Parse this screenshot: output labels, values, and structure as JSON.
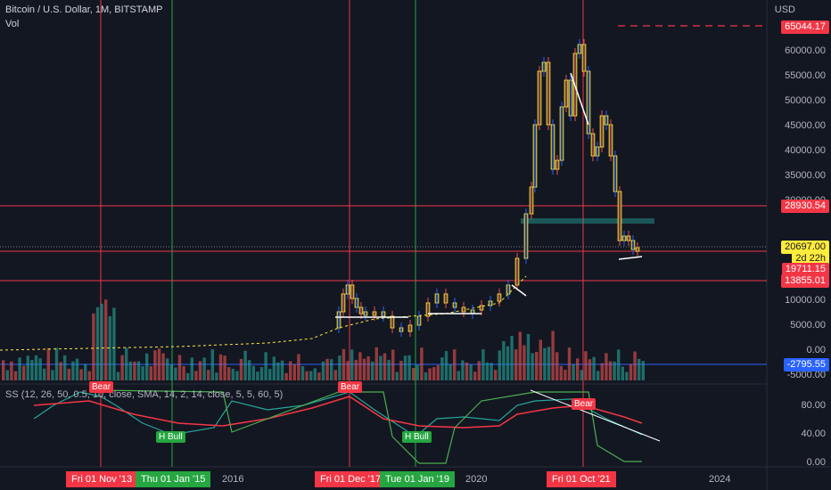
{
  "header": {
    "symbol_title": "Bitcoin / U.S. Dollar, 1M, BITSTAMP",
    "volume_label": "Vol",
    "currency": "USD",
    "indicator_title": "SS (12, 26, 50, 0.5, 10, close, SMA, 14, 2, 14, close, 5, 5, 60, 5)"
  },
  "price_axis": {
    "labels": [
      "60000.00",
      "55000.00",
      "50000.00",
      "45000.00",
      "40000.00",
      "35000.00",
      "30000.00",
      "10000.00",
      "5000.00",
      "0.00",
      "-5000.00"
    ],
    "badges": [
      {
        "text": "65044.17",
        "color": "#f23645"
      },
      {
        "text": "28930.54",
        "color": "#f23645"
      },
      {
        "text": "20697.00",
        "color": "#ffeb3b",
        "text_color": "#131722"
      },
      {
        "text": "2d 22h",
        "color": "#ffeb3b",
        "text_color": "#131722"
      },
      {
        "text": "19711.15",
        "color": "#f23645"
      },
      {
        "text": "13855.01",
        "color": "#f23645"
      },
      {
        "text": "-2795.55",
        "color": "#2962ff"
      }
    ]
  },
  "osc_axis": {
    "labels": [
      "80.00",
      "40.00",
      "0.00"
    ]
  },
  "time_axis": {
    "labels": [
      "2016",
      "2020",
      "2024"
    ],
    "badges": [
      {
        "text": "Fri 01 Nov '13",
        "color": "#f23645"
      },
      {
        "text": "Thu 01 Jan '15",
        "color": "#26a641"
      },
      {
        "text": "Fri 01 Dec '17",
        "color": "#f23645"
      },
      {
        "text": "Tue 01 Jan '19",
        "color": "#26a641"
      },
      {
        "text": "Fri 01 Oct '21",
        "color": "#f23645"
      }
    ]
  },
  "signals": [
    {
      "text": "Bear",
      "color": "#f23645"
    },
    {
      "text": "H Bull",
      "color": "#26a641"
    },
    {
      "text": "Bear",
      "color": "#f23645"
    },
    {
      "text": "H Bull",
      "color": "#26a641"
    },
    {
      "text": "Bear",
      "color": "#f23645"
    }
  ],
  "colors": {
    "background": "#131722",
    "bull": "#26a69a",
    "bear": "#ef5350",
    "candle_body": "#ffeb3b",
    "red_line": "#f23645",
    "green_line": "#26a641",
    "blue_line": "#2962ff",
    "ss_line": "#26a69a",
    "signal_line": "#f23645",
    "trend_line": "#4caf50"
  }
}
